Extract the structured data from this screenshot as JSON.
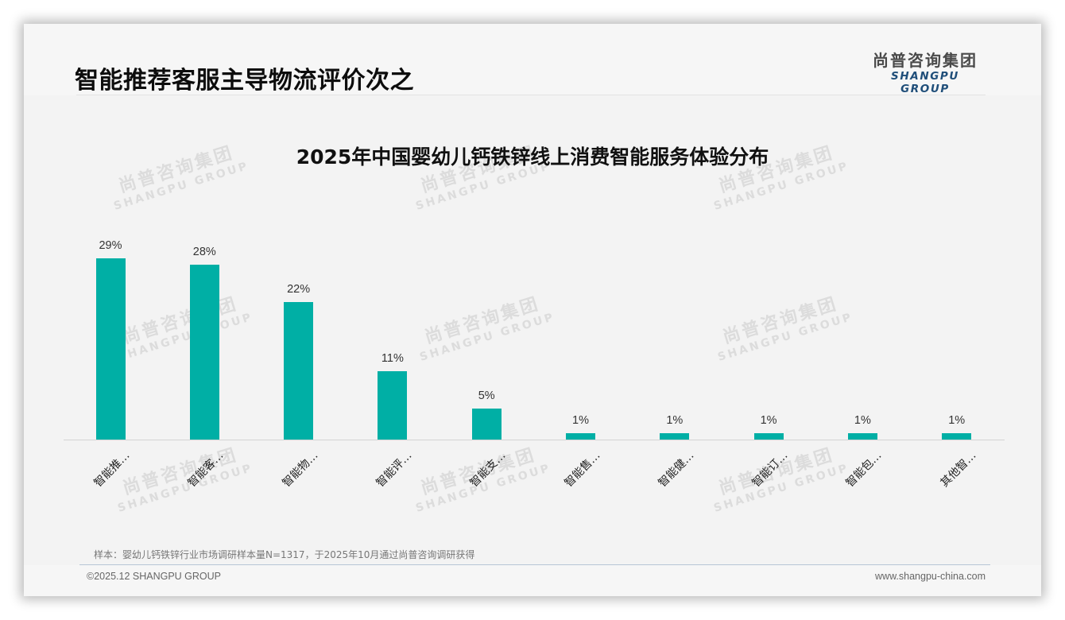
{
  "header": {
    "title": "智能推荐客服主导物流评价次之",
    "logo_cn": "尚普咨询集团",
    "logo_en": "SHANGPU GROUP"
  },
  "watermark": {
    "cn": "尚普咨询集团",
    "en": "SHANGPU GROUP"
  },
  "chart_data": {
    "type": "bar",
    "title": "2025年中国婴幼儿钙铁锌线上消费智能服务体验分布",
    "categories": [
      "智能推…",
      "智能客…",
      "智能物…",
      "智能评…",
      "智能支…",
      "智能售…",
      "智能健…",
      "智能订…",
      "智能包…",
      "其他智…"
    ],
    "values": [
      29,
      28,
      22,
      11,
      5,
      1,
      1,
      1,
      1,
      1
    ],
    "value_labels": [
      "29%",
      "28%",
      "22%",
      "11%",
      "5%",
      "1%",
      "1%",
      "1%",
      "1%",
      "1%"
    ],
    "xlabel": "",
    "ylabel": "",
    "ylim": [
      0,
      30
    ],
    "grid": false,
    "legend": "none",
    "bar_color": "#00afa5"
  },
  "footer": {
    "note": "样本：婴幼儿钙铁锌行业市场调研样本量N=1317，于2025年10月通过尚普咨询调研获得",
    "copyright": "©2025.12 SHANGPU GROUP",
    "website": "www.shangpu-china.com"
  }
}
